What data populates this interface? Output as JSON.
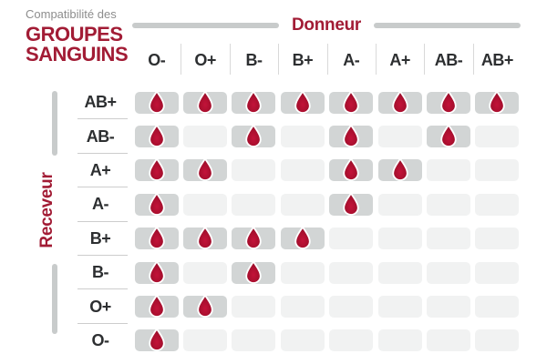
{
  "header": {
    "subtitle": "Compatibilité des",
    "title_line1": "GROUPES",
    "title_line2": "SANGUINS"
  },
  "axes": {
    "donor_label": "Donneur",
    "receiver_label": "Receveur"
  },
  "icons": {
    "compatible_marker": "blood-drop-icon"
  },
  "colors": {
    "accent_red": "#a21c35",
    "drop_red_center": "#c31339",
    "drop_red_edge": "#8c0c25",
    "filled_cell_gray": "#d2d5d5",
    "empty_cell_gray": "#f1f2f2",
    "axis_bar_gray": "#c8cbcb",
    "label_text": "#2d2f31",
    "subtitle_gray": "#8d8d8d"
  },
  "chart_data": {
    "type": "heatmap",
    "title": "Compatibilité des GROUPES SANGUINS",
    "x_axis_label": "Donneur",
    "y_axis_label": "Receveur",
    "columns": [
      "O-",
      "O+",
      "B-",
      "B+",
      "A-",
      "A+",
      "AB-",
      "AB+"
    ],
    "rows": [
      "AB+",
      "AB-",
      "A+",
      "A-",
      "B+",
      "B-",
      "O+",
      "O-"
    ],
    "matrix": [
      [
        1,
        1,
        1,
        1,
        1,
        1,
        1,
        1
      ],
      [
        1,
        0,
        1,
        0,
        1,
        0,
        1,
        0
      ],
      [
        1,
        1,
        0,
        0,
        1,
        1,
        0,
        0
      ],
      [
        1,
        0,
        0,
        0,
        1,
        0,
        0,
        0
      ],
      [
        1,
        1,
        1,
        1,
        0,
        0,
        0,
        0
      ],
      [
        1,
        0,
        1,
        0,
        0,
        0,
        0,
        0
      ],
      [
        1,
        1,
        0,
        0,
        0,
        0,
        0,
        0
      ],
      [
        1,
        0,
        0,
        0,
        0,
        0,
        0,
        0
      ]
    ],
    "true_marker": "blood-drop-icon",
    "false_marker": "empty-gray-cell",
    "legend": null,
    "grid": "rounded-cell-matrix"
  }
}
